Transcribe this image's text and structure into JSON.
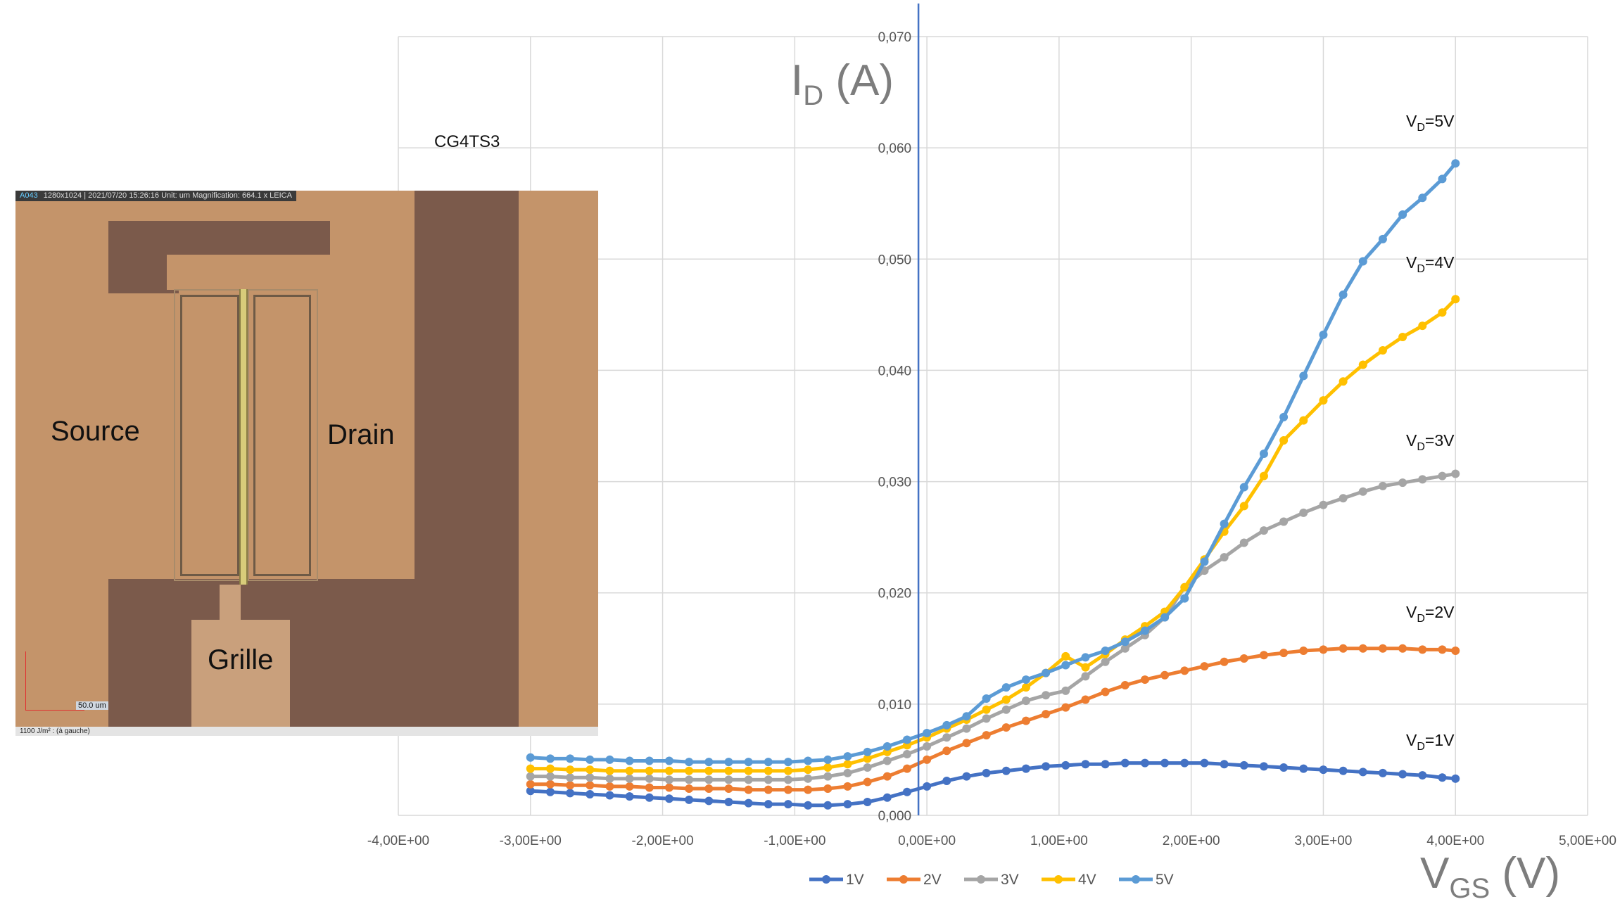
{
  "sample_label": "CG4TS3",
  "microscope": {
    "status_tag": "A043",
    "status_text": "1280x1024 | 2021/07/20 15:26:16  Unit: um  Magnification: 664.1 x  LEICA",
    "footer_text": "1100 J/m² : (à gauche)",
    "scale_label": "50.0 um",
    "labels": {
      "source": "Source",
      "drain": "Drain",
      "gate": "Grille"
    }
  },
  "axis_titles": {
    "y_main": "I",
    "y_sub": "D",
    "y_unit": " (A)",
    "x_main": "V",
    "x_sub": "GS",
    "x_unit": " (V)"
  },
  "curve_labels": [
    {
      "main": "V",
      "sub": "D",
      "rest": "=5V",
      "series": "5V"
    },
    {
      "main": "V",
      "sub": "D",
      "rest": "=4V",
      "series": "4V"
    },
    {
      "main": "V",
      "sub": "D",
      "rest": "=3V",
      "series": "3V"
    },
    {
      "main": "V",
      "sub": "D",
      "rest": "=2V",
      "series": "2V"
    },
    {
      "main": "V",
      "sub": "D",
      "rest": "=1V",
      "series": "1V"
    }
  ],
  "chart_data": {
    "type": "scatter",
    "xlim": [
      -4,
      5
    ],
    "ylim": [
      0,
      0.07
    ],
    "grid": true,
    "legend_position": "bottom",
    "x_ticks": [
      -4,
      -3,
      -2,
      -1,
      0,
      1,
      2,
      3,
      4,
      5
    ],
    "x_tick_labels": [
      "-4,00E+00",
      "-3,00E+00",
      "-2,00E+00",
      "-1,00E+00",
      "0,00E+00",
      "1,00E+00",
      "2,00E+00",
      "3,00E+00",
      "4,00E+00",
      "5,00E+00"
    ],
    "y_ticks": [
      0,
      0.01,
      0.02,
      0.03,
      0.04,
      0.05,
      0.06,
      0.07
    ],
    "y_tick_labels": [
      "0,000",
      "0,010",
      "0,020",
      "0,030",
      "0,040",
      "0,050",
      "0,060",
      "0,070"
    ],
    "x": [
      -3.0,
      -2.85,
      -2.7,
      -2.55,
      -2.4,
      -2.25,
      -2.1,
      -1.95,
      -1.8,
      -1.65,
      -1.5,
      -1.35,
      -1.2,
      -1.05,
      -0.9,
      -0.75,
      -0.6,
      -0.45,
      -0.3,
      -0.15,
      0.0,
      0.15,
      0.3,
      0.45,
      0.6,
      0.75,
      0.9,
      1.05,
      1.2,
      1.35,
      1.5,
      1.65,
      1.8,
      1.95,
      2.1,
      2.25,
      2.4,
      2.55,
      2.7,
      2.85,
      3.0,
      3.15,
      3.3,
      3.45,
      3.6,
      3.75,
      3.9,
      4.0
    ],
    "series": [
      {
        "name": "1V",
        "color": "#4472c4",
        "values": [
          0.0022,
          0.0021,
          0.002,
          0.0019,
          0.0018,
          0.0017,
          0.0016,
          0.0015,
          0.0014,
          0.0013,
          0.0012,
          0.0011,
          0.001,
          0.001,
          0.0009,
          0.0009,
          0.001,
          0.0012,
          0.0016,
          0.0021,
          0.0026,
          0.0031,
          0.0035,
          0.0038,
          0.004,
          0.0042,
          0.0044,
          0.0045,
          0.0046,
          0.0046,
          0.0047,
          0.0047,
          0.0047,
          0.0047,
          0.0047,
          0.0046,
          0.0045,
          0.0044,
          0.0043,
          0.0042,
          0.0041,
          0.004,
          0.0039,
          0.0038,
          0.0037,
          0.0036,
          0.0034,
          0.0033
        ]
      },
      {
        "name": "2V",
        "color": "#ed7d31",
        "values": [
          0.0028,
          0.0028,
          0.0027,
          0.0027,
          0.0026,
          0.0026,
          0.0025,
          0.0025,
          0.0024,
          0.0024,
          0.0024,
          0.0023,
          0.0023,
          0.0023,
          0.0023,
          0.0024,
          0.0026,
          0.003,
          0.0035,
          0.0042,
          0.005,
          0.0058,
          0.0065,
          0.0072,
          0.0079,
          0.0085,
          0.0091,
          0.0097,
          0.0104,
          0.0111,
          0.0117,
          0.0122,
          0.0126,
          0.013,
          0.0134,
          0.0138,
          0.0141,
          0.0144,
          0.0146,
          0.0148,
          0.0149,
          0.015,
          0.015,
          0.015,
          0.015,
          0.0149,
          0.0149,
          0.0148
        ]
      },
      {
        "name": "3V",
        "color": "#a5a5a5",
        "values": [
          0.0035,
          0.0035,
          0.0034,
          0.0034,
          0.0033,
          0.0033,
          0.0033,
          0.0032,
          0.0032,
          0.0032,
          0.0032,
          0.0032,
          0.0032,
          0.0032,
          0.0033,
          0.0035,
          0.0038,
          0.0043,
          0.0049,
          0.0055,
          0.0062,
          0.007,
          0.0078,
          0.0087,
          0.0095,
          0.0103,
          0.0108,
          0.0112,
          0.0125,
          0.0138,
          0.015,
          0.0162,
          0.0178,
          0.0205,
          0.022,
          0.0232,
          0.0245,
          0.0256,
          0.0264,
          0.0272,
          0.0279,
          0.0285,
          0.0291,
          0.0296,
          0.0299,
          0.0302,
          0.0305,
          0.0307
        ]
      },
      {
        "name": "4V",
        "color": "#ffc000",
        "values": [
          0.0042,
          0.0042,
          0.0041,
          0.0041,
          0.004,
          0.004,
          0.004,
          0.004,
          0.004,
          0.004,
          0.004,
          0.004,
          0.004,
          0.004,
          0.0041,
          0.0043,
          0.0046,
          0.0051,
          0.0057,
          0.0063,
          0.007,
          0.0078,
          0.0086,
          0.0095,
          0.0104,
          0.0115,
          0.0128,
          0.0143,
          0.0133,
          0.0145,
          0.0158,
          0.017,
          0.0183,
          0.0205,
          0.023,
          0.0255,
          0.0278,
          0.0305,
          0.0337,
          0.0355,
          0.0373,
          0.039,
          0.0405,
          0.0418,
          0.043,
          0.044,
          0.0452,
          0.0464
        ]
      },
      {
        "name": "5V",
        "color": "#5b9bd5",
        "values": [
          0.0052,
          0.0051,
          0.0051,
          0.005,
          0.005,
          0.0049,
          0.0049,
          0.0049,
          0.0048,
          0.0048,
          0.0048,
          0.0048,
          0.0048,
          0.0048,
          0.0049,
          0.005,
          0.0053,
          0.0057,
          0.0062,
          0.0068,
          0.0074,
          0.0081,
          0.0089,
          0.0105,
          0.0115,
          0.0122,
          0.0128,
          0.0135,
          0.0142,
          0.0148,
          0.0156,
          0.0166,
          0.0178,
          0.0195,
          0.0228,
          0.0262,
          0.0295,
          0.0325,
          0.0358,
          0.0395,
          0.0432,
          0.0468,
          0.0498,
          0.0518,
          0.054,
          0.0555,
          0.0572,
          0.0586
        ]
      }
    ]
  }
}
